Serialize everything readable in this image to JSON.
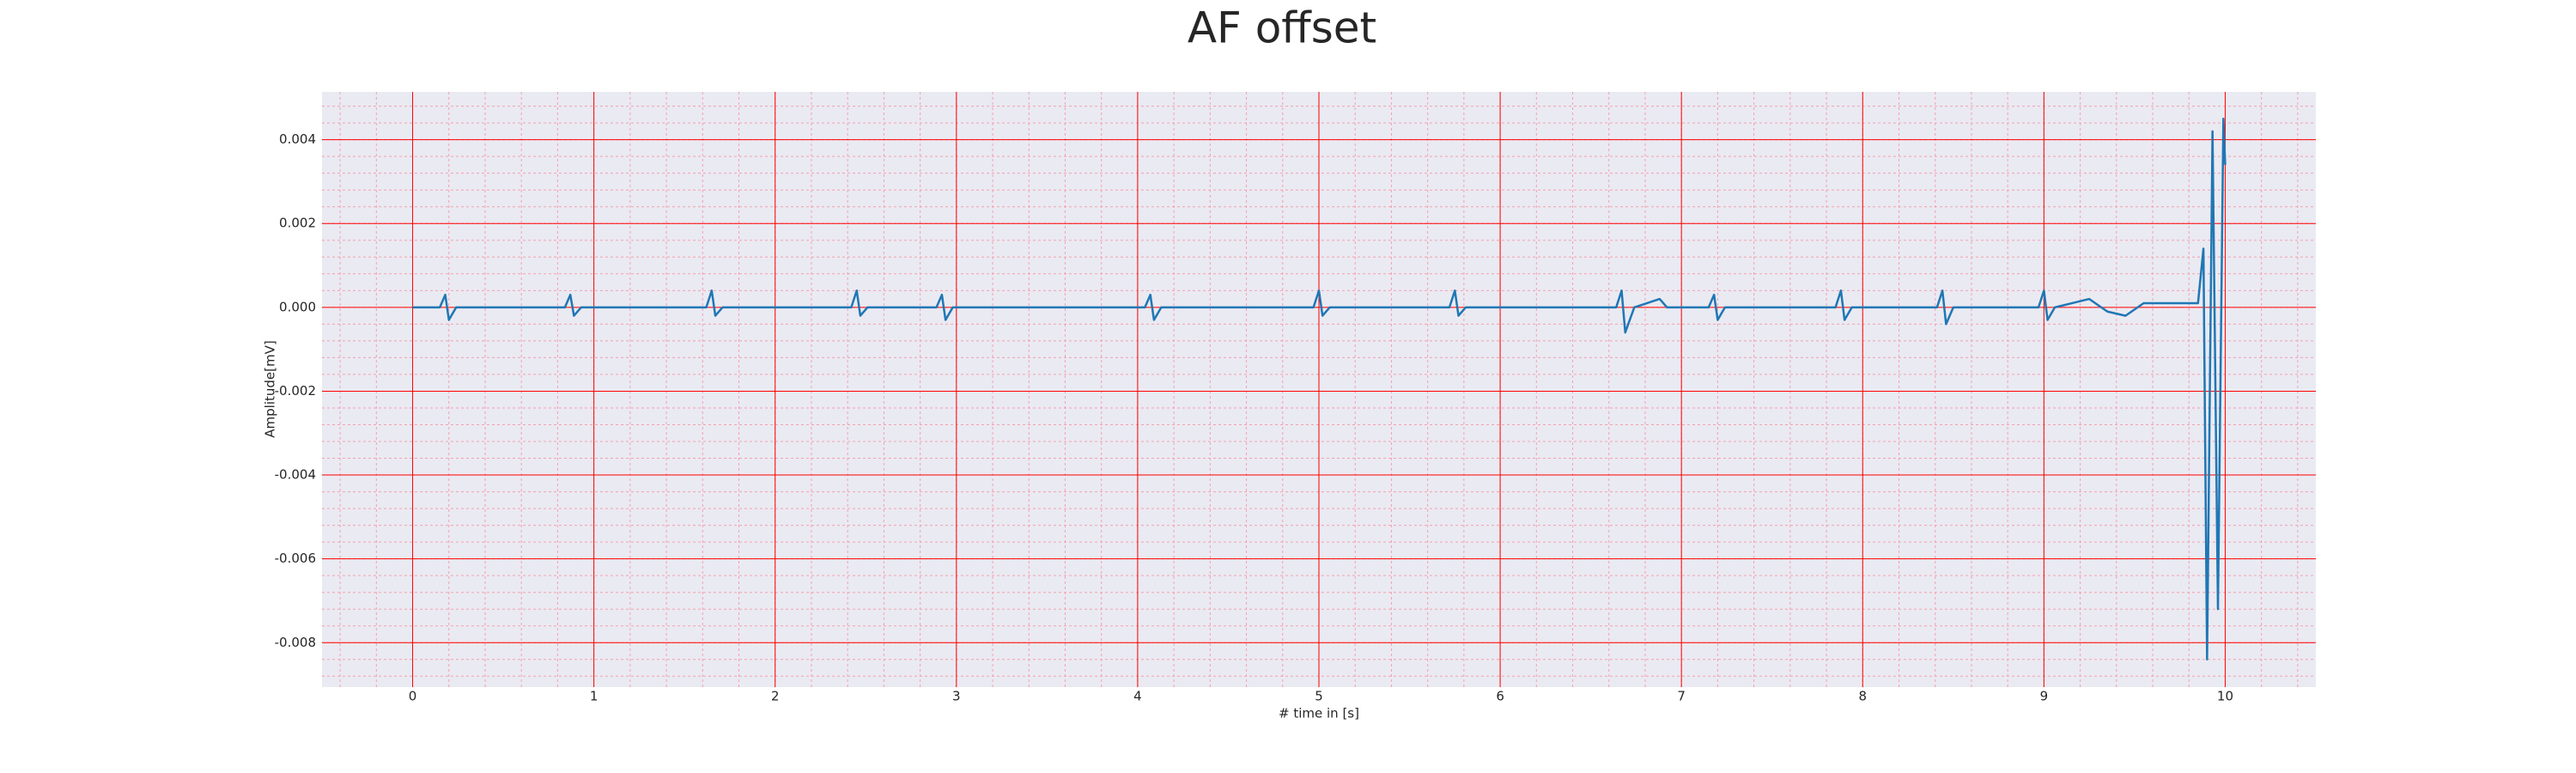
{
  "chart_data": {
    "type": "line",
    "title": "AF offset",
    "x_label": "# time in [s]",
    "y_label": "Amplitude[mV]",
    "x": [
      0,
      0.15,
      0.18,
      0.2,
      0.24,
      0.5,
      0.84,
      0.87,
      0.89,
      0.93,
      1.2,
      1.62,
      1.65,
      1.67,
      1.71,
      2.1,
      2.42,
      2.45,
      2.47,
      2.51,
      2.89,
      2.92,
      2.94,
      2.98,
      3.5,
      4.04,
      4.07,
      4.09,
      4.13,
      4.4,
      4.97,
      5.0,
      5.02,
      5.06,
      5.72,
      5.75,
      5.77,
      5.81,
      6.2,
      6.64,
      6.67,
      6.69,
      6.74,
      6.88,
      6.92,
      7.15,
      7.18,
      7.2,
      7.24,
      7.85,
      7.88,
      7.9,
      7.94,
      8.41,
      8.44,
      8.46,
      8.5,
      8.97,
      9.0,
      9.02,
      9.06,
      9.25,
      9.35,
      9.45,
      9.55,
      9.8,
      9.85,
      9.88,
      9.9,
      9.93,
      9.96,
      9.99,
      10.0
    ],
    "values": [
      0,
      0,
      0.0003,
      -0.0003,
      0,
      0,
      0,
      0.0003,
      -0.0002,
      0,
      0,
      0,
      0.0004,
      -0.0002,
      0,
      0,
      0,
      0.0004,
      -0.0002,
      0,
      0,
      0.0003,
      -0.0003,
      0,
      0,
      0,
      0.0003,
      -0.0003,
      0,
      0,
      0,
      0.0004,
      -0.0002,
      0,
      0,
      0.0004,
      -0.0002,
      0,
      0,
      0,
      0.0004,
      -0.0006,
      0,
      0.0002,
      0,
      0,
      0.0003,
      -0.0003,
      0,
      0,
      0.0004,
      -0.0003,
      0,
      0,
      0.0004,
      -0.0004,
      0,
      0,
      0.0004,
      -0.0003,
      0,
      0.0002,
      -0.0001,
      -0.0002,
      0.0001,
      0.0001,
      0.0001,
      0.0014,
      -0.0084,
      0.0042,
      -0.0072,
      0.0045,
      0.0034
    ],
    "color": "#1f77b4",
    "xlim": [
      -0.5,
      10.5
    ],
    "xticks": [
      0,
      1,
      2,
      3,
      4,
      5,
      6,
      7,
      8,
      9,
      10
    ],
    "ylim": [
      -0.00906,
      0.00514
    ],
    "yticks": [
      -0.008,
      -0.006,
      -0.004,
      -0.002,
      {
        "value": 0,
        "label": "0.000"
      },
      0.002,
      0.004
    ],
    "grid": true,
    "grid_color": "#ff0000",
    "minor_grid": true,
    "minor_grid_color": "#f4a0b0",
    "background": "#eaeaf2"
  }
}
